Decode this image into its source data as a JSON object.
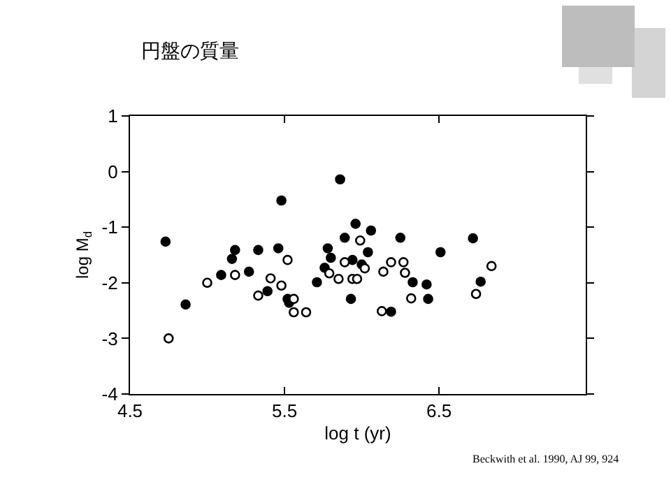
{
  "chart_data": {
    "type": "scatter",
    "title": "円盤の質量",
    "xlabel": "log t (yr)",
    "ylabel": "log M$_{d}$",
    "annotations": [
      "Beckwith et al. 1990, AJ 99, 924"
    ],
    "xlim": [
      4.5,
      7.45
    ],
    "xticks": [
      4.5,
      5.5,
      6.5
    ],
    "ylim": [
      -4,
      1
    ],
    "yticks": [
      -4,
      -3,
      -2,
      -1,
      0,
      1
    ],
    "marker": "circle",
    "series": [
      {
        "color": "#000000",
        "x": [
          4.73,
          4.86,
          5.09,
          5.16,
          5.18,
          5.27,
          5.33,
          5.39,
          5.46,
          5.48,
          5.52,
          5.53,
          5.71,
          5.76,
          5.78,
          5.8,
          5.86,
          5.96,
          6.06,
          5.89,
          6.25,
          6.04,
          6.51,
          6.72,
          5.94,
          6.0,
          5.93,
          6.33,
          6.42,
          6.43,
          6.19,
          6.77
        ],
        "values": [
          -1.26,
          -2.39,
          -1.86,
          -1.57,
          -1.41,
          -1.8,
          -1.41,
          -2.15,
          -1.38,
          -0.52,
          -2.29,
          -2.36,
          -1.99,
          -1.73,
          -1.38,
          -1.55,
          -0.14,
          -0.94,
          -1.06,
          -1.19,
          -1.19,
          -1.45,
          -1.45,
          -1.2,
          -1.59,
          -1.67,
          -2.29,
          -1.99,
          -2.03,
          -2.29,
          -2.52,
          -1.98
        ]
      },
      {
        "color": "#ffffff",
        "x": [
          4.75,
          5.0,
          5.18,
          5.33,
          5.41,
          5.48,
          5.52,
          5.56,
          5.56,
          5.64,
          5.79,
          5.99,
          5.89,
          6.02,
          5.85,
          5.94,
          5.97,
          6.14,
          6.19,
          6.27,
          6.28,
          6.32,
          6.13,
          6.74,
          6.84
        ],
        "values": [
          -3.0,
          -2.0,
          -1.86,
          -2.23,
          -1.92,
          -2.05,
          -1.59,
          -2.29,
          -2.53,
          -2.53,
          -1.83,
          -1.24,
          -1.63,
          -1.74,
          -1.93,
          -1.93,
          -1.93,
          -1.8,
          -1.63,
          -1.63,
          -1.82,
          -2.28,
          -2.51,
          -2.2,
          -1.7
        ]
      }
    ]
  }
}
